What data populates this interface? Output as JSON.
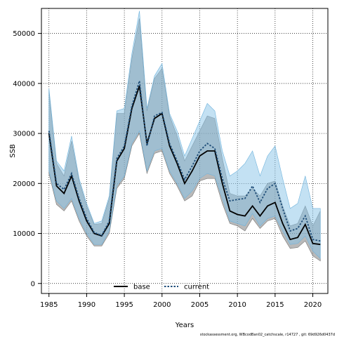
{
  "chart_data": {
    "type": "line",
    "xlabel": "Years",
    "ylabel": "SSB",
    "xlim": [
      1984,
      2022
    ],
    "ylim": [
      -2000,
      55000
    ],
    "x_ticks": [
      1985,
      1990,
      1995,
      2000,
      2005,
      2010,
      2015,
      2020
    ],
    "y_ticks": [
      0,
      10000,
      20000,
      30000,
      40000,
      50000
    ],
    "grid": true,
    "legend_placement": "bottom-center",
    "years": [
      1985,
      1986,
      1987,
      1988,
      1989,
      1990,
      1991,
      1992,
      1993,
      1994,
      1995,
      1996,
      1997,
      1998,
      1999,
      2000,
      2001,
      2002,
      2003,
      2004,
      2005,
      2006,
      2007,
      2008,
      2009,
      2010,
      2011,
      2012,
      2013,
      2014,
      2015,
      2016,
      2017,
      2018,
      2019,
      2020,
      2021
    ],
    "series": [
      {
        "name": "base",
        "color": "#000000",
        "band_color": "#808080",
        "values": [
          30000,
          19500,
          18000,
          21500,
          16500,
          12500,
          10000,
          9500,
          12000,
          24500,
          27000,
          35000,
          39500,
          28000,
          33000,
          34000,
          27500,
          24000,
          20000,
          22500,
          25500,
          26500,
          26500,
          20000,
          14500,
          13800,
          13500,
          15500,
          13500,
          15500,
          16200,
          12000,
          8800,
          9200,
          11800,
          8000,
          7800
        ],
        "lower": [
          22000,
          15800,
          14500,
          16500,
          12500,
          9500,
          7500,
          7500,
          10000,
          19000,
          21000,
          27500,
          30000,
          22000,
          26000,
          26500,
          22000,
          19500,
          16500,
          17500,
          20500,
          21000,
          21000,
          16000,
          12000,
          11500,
          10500,
          13000,
          11000,
          12500,
          13000,
          9500,
          7000,
          7200,
          8500,
          5500,
          4500
        ],
        "upper": [
          38500,
          24000,
          21500,
          28500,
          20500,
          15500,
          11800,
          12000,
          17000,
          34000,
          34000,
          45000,
          53000,
          34500,
          41000,
          43000,
          33500,
          29500,
          24500,
          27500,
          30500,
          33500,
          33000,
          25000,
          18000,
          17500,
          17500,
          19000,
          17500,
          20000,
          20500,
          15500,
          11500,
          12000,
          15500,
          11500,
          14500
        ]
      },
      {
        "name": "current",
        "color": "#1f4e79",
        "band_color": "#87c4e8",
        "values": [
          30500,
          20000,
          18800,
          22000,
          17000,
          13000,
          10200,
          9600,
          12500,
          25000,
          27500,
          35500,
          40500,
          27500,
          33500,
          34200,
          28000,
          24500,
          20800,
          23500,
          26500,
          28000,
          27000,
          21000,
          16500,
          16800,
          17000,
          19500,
          16200,
          19000,
          20000,
          15000,
          10500,
          11000,
          13500,
          8800,
          8500
        ],
        "lower": [
          22500,
          16500,
          15000,
          17000,
          13000,
          10000,
          7800,
          7800,
          10500,
          19500,
          21500,
          28000,
          30500,
          22500,
          26500,
          27000,
          22500,
          20000,
          17000,
          18500,
          21000,
          22000,
          21500,
          17000,
          12500,
          12000,
          11500,
          14000,
          11500,
          13000,
          13500,
          10500,
          7800,
          8000,
          9500,
          6500,
          5000
        ],
        "upper": [
          39000,
          24500,
          22500,
          29500,
          21000,
          16000,
          12000,
          12500,
          17500,
          34500,
          35000,
          46000,
          54500,
          35000,
          41500,
          44000,
          34000,
          30500,
          25500,
          29000,
          32500,
          36000,
          34500,
          26500,
          21500,
          22500,
          24000,
          26500,
          21500,
          25500,
          27500,
          21000,
          15000,
          16000,
          21500,
          15000,
          15000
        ]
      }
    ],
    "legend": [
      {
        "label": "base",
        "style": "solid"
      },
      {
        "label": "current",
        "style": "dashed"
      }
    ],
    "footer": "stockassessment.org, WBcodBan02_catchscale, r14727 , git: 69d926d0437d"
  }
}
